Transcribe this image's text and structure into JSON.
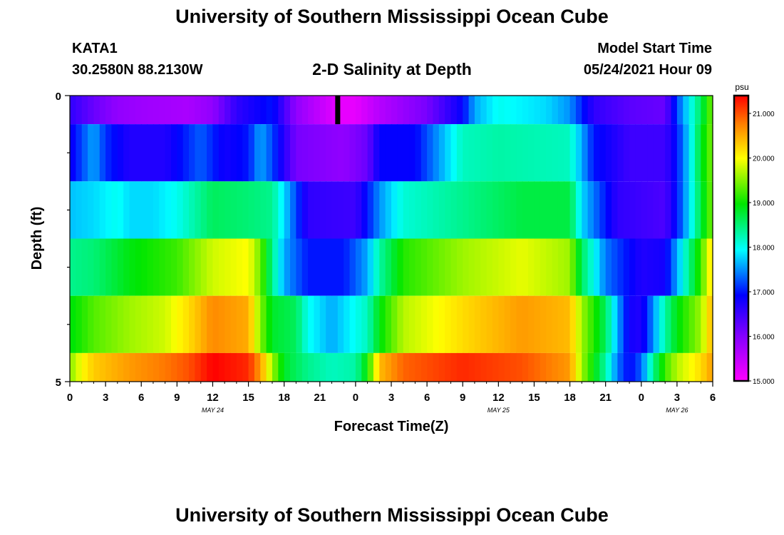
{
  "header": {
    "title": "University of Southern Mississippi Ocean Cube",
    "station": "KATA1",
    "coordinates": "30.2580N  88.2130W",
    "model_start_label": "Model Start Time",
    "model_start_value": "05/24/2021 Hour 09"
  },
  "footer": {
    "title": "University of Southern Mississippi Ocean Cube"
  },
  "chart_data": {
    "type": "heatmap",
    "title": "2-D Salinity at Depth",
    "xlabel": "Forecast Time(Z)",
    "ylabel": "Depth (ft)",
    "x_tick_labels": [
      "0",
      "3",
      "6",
      "9",
      "12",
      "15",
      "18",
      "21",
      "0",
      "3",
      "6",
      "9",
      "12",
      "15",
      "18",
      "21",
      "0",
      "3",
      "6"
    ],
    "date_labels": [
      {
        "label": "MAY 24",
        "hour_index": 12
      },
      {
        "label": "MAY 25",
        "hour_index": 36
      },
      {
        "label": "MAY 26",
        "hour_index": 51
      }
    ],
    "x_range_hours": [
      0,
      54
    ],
    "y_tick_labels": [
      {
        "label": "0",
        "depth": 0
      },
      {
        "label": "5",
        "depth": 5
      }
    ],
    "y_range": [
      0,
      5
    ],
    "depth_layers": [
      {
        "top": 0.0,
        "bottom": 0.5
      },
      {
        "top": 0.5,
        "bottom": 1.5
      },
      {
        "top": 1.5,
        "bottom": 2.5
      },
      {
        "top": 2.5,
        "bottom": 3.5
      },
      {
        "top": 3.5,
        "bottom": 4.5
      },
      {
        "top": 4.5,
        "bottom": 5.0
      }
    ],
    "salinity_keyframes": [
      [
        [
          0,
          16.6
        ],
        [
          2,
          16.2
        ],
        [
          4,
          15.9
        ],
        [
          6,
          15.8
        ],
        [
          10,
          15.7
        ],
        [
          12,
          15.9
        ],
        [
          14,
          16.6
        ],
        [
          17,
          17.0
        ],
        [
          19,
          15.9
        ],
        [
          21,
          15.5
        ],
        [
          22.5,
          15.2
        ],
        [
          24,
          15.2
        ],
        [
          26,
          15.6
        ],
        [
          30,
          16.1
        ],
        [
          33,
          16.9
        ],
        [
          34,
          17.6
        ],
        [
          36,
          18.0
        ],
        [
          40,
          17.8
        ],
        [
          42,
          17.5
        ],
        [
          44,
          16.6
        ],
        [
          47,
          16.3
        ],
        [
          50,
          16.2
        ],
        [
          51,
          17.2
        ],
        [
          52,
          17.9
        ],
        [
          53,
          18.6
        ],
        [
          54,
          19.5
        ]
      ],
      [
        [
          0,
          16.8
        ],
        [
          1,
          17.2
        ],
        [
          2,
          17.6
        ],
        [
          3,
          17.1
        ],
        [
          5,
          16.7
        ],
        [
          8,
          16.7
        ],
        [
          10,
          17.1
        ],
        [
          11,
          17.3
        ],
        [
          13,
          16.8
        ],
        [
          15,
          17.0
        ],
        [
          16,
          17.6
        ],
        [
          17,
          17.2
        ],
        [
          19,
          16.1
        ],
        [
          23,
          15.9
        ],
        [
          25,
          16.2
        ],
        [
          26,
          16.9
        ],
        [
          29,
          16.9
        ],
        [
          33,
          18.2
        ],
        [
          36,
          18.3
        ],
        [
          42,
          18.2
        ],
        [
          44,
          17.0
        ],
        [
          47,
          16.5
        ],
        [
          50,
          16.5
        ],
        [
          51,
          17.0
        ],
        [
          52,
          17.8
        ],
        [
          53,
          18.8
        ],
        [
          54,
          19.5
        ]
      ],
      [
        [
          0,
          17.7
        ],
        [
          2,
          17.8
        ],
        [
          4,
          18.0
        ],
        [
          5,
          17.8
        ],
        [
          7,
          17.8
        ],
        [
          9,
          18.0
        ],
        [
          10,
          18.2
        ],
        [
          12,
          18.6
        ],
        [
          15,
          18.5
        ],
        [
          17,
          18.4
        ],
        [
          19,
          17.2
        ],
        [
          20,
          16.6
        ],
        [
          24,
          16.5
        ],
        [
          25,
          17.0
        ],
        [
          26,
          17.5
        ],
        [
          28,
          18.1
        ],
        [
          33,
          18.4
        ],
        [
          38,
          18.7
        ],
        [
          42,
          18.7
        ],
        [
          43,
          17.8
        ],
        [
          46,
          16.6
        ],
        [
          50,
          16.4
        ],
        [
          51,
          17.0
        ],
        [
          52,
          17.8
        ],
        [
          53,
          18.7
        ],
        [
          54,
          19.5
        ]
      ],
      [
        [
          0,
          18.4
        ],
        [
          2,
          18.5
        ],
        [
          5,
          18.9
        ],
        [
          9,
          19.2
        ],
        [
          12,
          19.8
        ],
        [
          15,
          20.0
        ],
        [
          16,
          19.4
        ],
        [
          17,
          18.4
        ],
        [
          18,
          17.6
        ],
        [
          20,
          17.0
        ],
        [
          23,
          17.0
        ],
        [
          25,
          17.6
        ],
        [
          26,
          18.3
        ],
        [
          28,
          19.1
        ],
        [
          33,
          19.6
        ],
        [
          38,
          19.9
        ],
        [
          42,
          19.6
        ],
        [
          43,
          18.6
        ],
        [
          45,
          17.4
        ],
        [
          48,
          16.7
        ],
        [
          50,
          16.8
        ],
        [
          51,
          17.6
        ],
        [
          52,
          18.4
        ],
        [
          53,
          19.2
        ],
        [
          54,
          20.3
        ]
      ],
      [
        [
          0,
          18.9
        ],
        [
          2,
          19.3
        ],
        [
          5,
          19.6
        ],
        [
          8,
          19.8
        ],
        [
          10,
          20.2
        ],
        [
          12,
          20.7
        ],
        [
          15,
          20.5
        ],
        [
          16,
          19.5
        ],
        [
          17,
          18.8
        ],
        [
          19,
          18.6
        ],
        [
          20,
          18.0
        ],
        [
          22,
          17.6
        ],
        [
          25,
          18.2
        ],
        [
          26,
          18.9
        ],
        [
          28,
          19.7
        ],
        [
          33,
          20.2
        ],
        [
          38,
          20.6
        ],
        [
          42,
          20.4
        ],
        [
          43,
          19.6
        ],
        [
          45,
          18.6
        ],
        [
          46,
          17.6
        ],
        [
          47,
          16.8
        ],
        [
          48,
          16.7
        ],
        [
          49,
          17.5
        ],
        [
          50,
          18.3
        ],
        [
          51,
          18.9
        ],
        [
          53,
          19.6
        ],
        [
          54,
          20.5
        ]
      ],
      [
        [
          0,
          19.5
        ],
        [
          1,
          20.0
        ],
        [
          2,
          20.3
        ],
        [
          5,
          20.6
        ],
        [
          8,
          20.8
        ],
        [
          10,
          21.0
        ],
        [
          12,
          21.4
        ],
        [
          15,
          21.2
        ],
        [
          16,
          20.6
        ],
        [
          17,
          19.6
        ],
        [
          18,
          18.8
        ],
        [
          20,
          18.4
        ],
        [
          22,
          18.2
        ],
        [
          24,
          18.3
        ],
        [
          25,
          19.0
        ],
        [
          26,
          20.4
        ],
        [
          28,
          20.9
        ],
        [
          33,
          21.2
        ],
        [
          38,
          21.0
        ],
        [
          42,
          20.6
        ],
        [
          43,
          19.6
        ],
        [
          45,
          18.3
        ],
        [
          46,
          17.4
        ],
        [
          47,
          16.9
        ],
        [
          48,
          17.3
        ],
        [
          49,
          18.4
        ],
        [
          50,
          19.2
        ],
        [
          51,
          19.7
        ],
        [
          53,
          20.2
        ],
        [
          54,
          20.6
        ]
      ]
    ],
    "colorbar": {
      "unit": "psu",
      "min": 15.0,
      "max": 21.4,
      "tick_labels": [
        "15.000",
        "16.000",
        "17.000",
        "18.000",
        "19.000",
        "20.000",
        "21.000"
      ],
      "tick_values": [
        15,
        16,
        17,
        18,
        19,
        20,
        21
      ]
    },
    "marker_hour": 22.5,
    "grid": false
  }
}
